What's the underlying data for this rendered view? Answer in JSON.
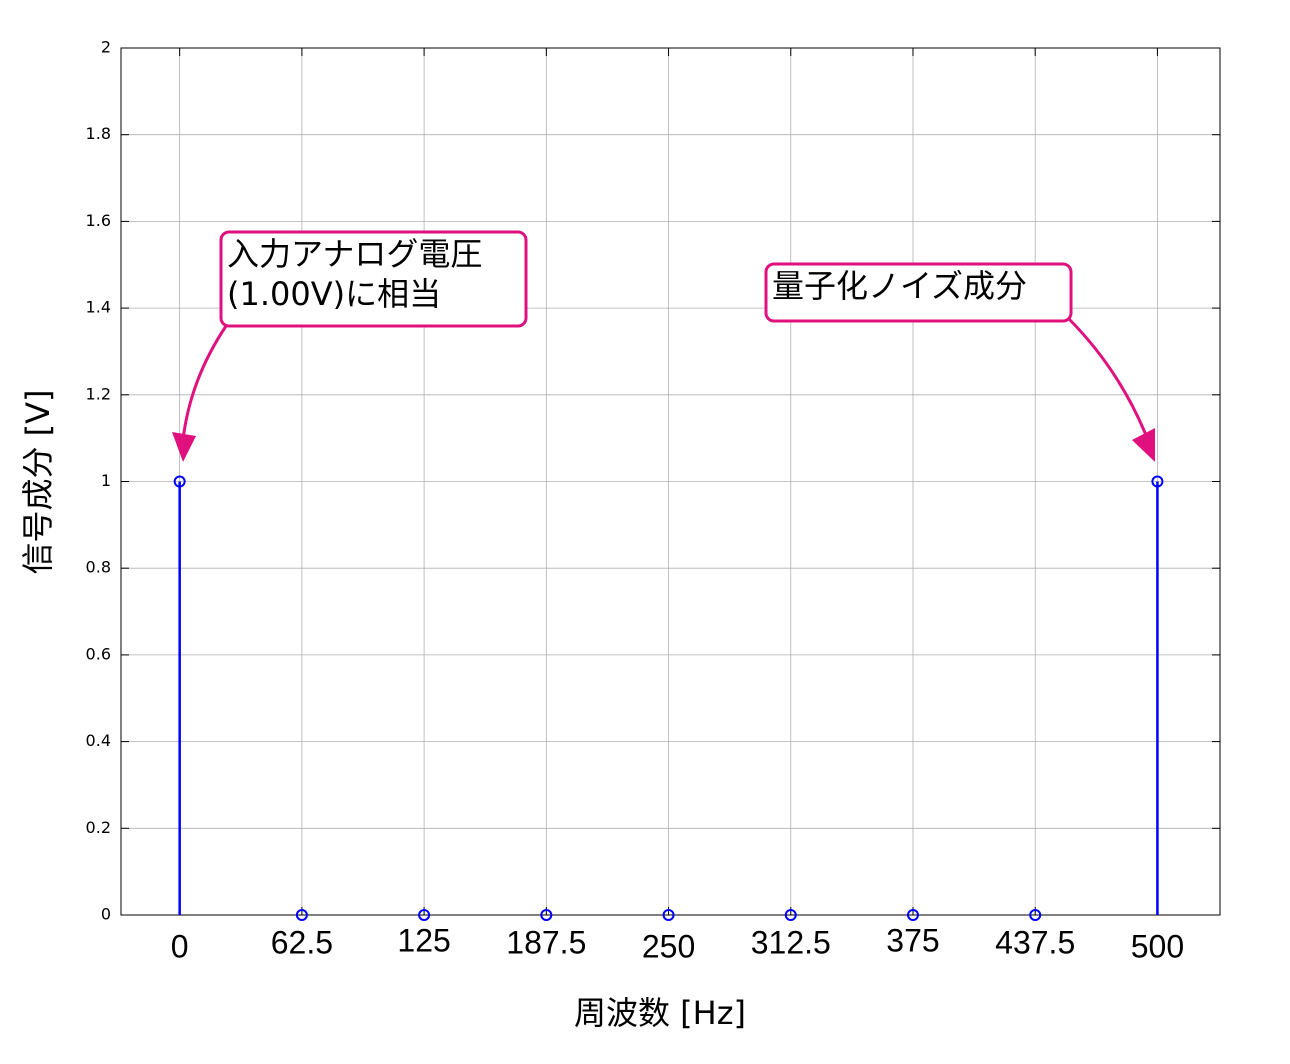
{
  "chart_data": {
    "type": "stem",
    "x_label": "周波数 [Hz]",
    "y_label": "信号成分 [V]",
    "x": [
      0,
      62.5,
      125,
      187.5,
      250,
      312.5,
      375,
      437.5,
      500
    ],
    "series": [
      {
        "color": "#0000ff",
        "values": [
          1,
          0,
          0,
          0,
          0,
          0,
          0,
          0,
          1
        ]
      }
    ],
    "xlim": [
      -30,
      532
    ],
    "ylim": [
      0,
      2
    ],
    "xticks": [
      0,
      62.5,
      125,
      187.5,
      250,
      312.5,
      375,
      437.5,
      500
    ],
    "yticks": [
      0,
      0.2,
      0.4,
      0.6,
      0.8,
      1,
      1.2,
      1.4,
      1.6,
      1.8,
      2
    ],
    "grid": true,
    "annotations": [
      {
        "lines": [
          "入力アナログ電圧",
          "(1.00V)に相当"
        ],
        "color": "#e0117f"
      },
      {
        "lines": [
          "量子化ノイズ成分"
        ],
        "color": "#e0117f"
      }
    ]
  }
}
